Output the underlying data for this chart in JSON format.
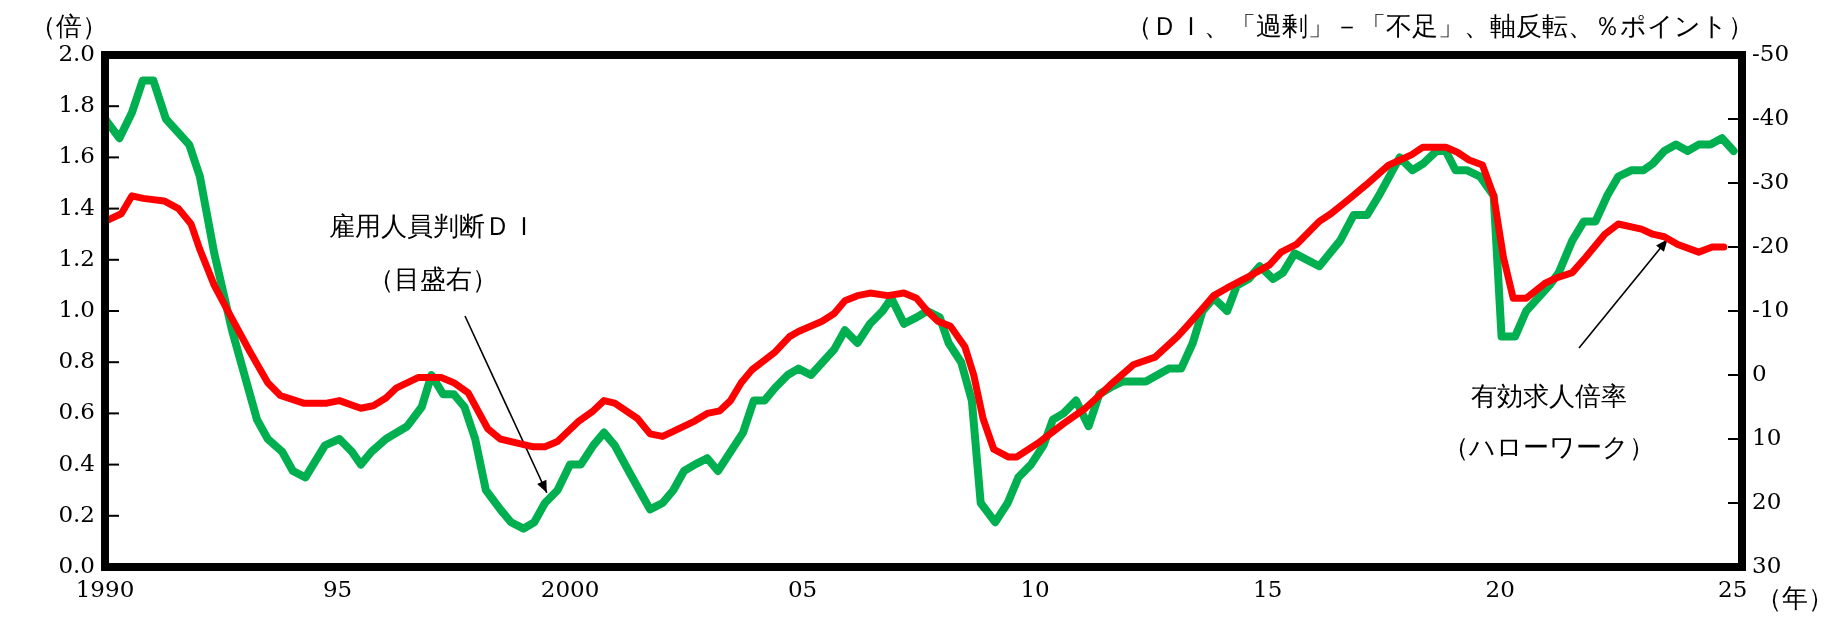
{
  "chart_data": {
    "type": "line",
    "ylabel": "（倍）",
    "y2label": "（ＤＩ、「過剰」－「不足」、軸反転、％ポイント）",
    "xlabel": "（年）",
    "xlim": [
      1990,
      2025.2
    ],
    "xticks": [
      {
        "value": 1990,
        "label": "1990"
      },
      {
        "value": 1995,
        "label": "95"
      },
      {
        "value": 2000,
        "label": "2000"
      },
      {
        "value": 2005,
        "label": "05"
      },
      {
        "value": 2010,
        "label": "10"
      },
      {
        "value": 2015,
        "label": "15"
      },
      {
        "value": 2020,
        "label": "20"
      },
      {
        "value": 2025,
        "label": "25"
      }
    ],
    "ylim": [
      0,
      2
    ],
    "yticks": [
      {
        "value": 0,
        "label": "0.0"
      },
      {
        "value": 0.2,
        "label": "0.2"
      },
      {
        "value": 0.4,
        "label": "0.4"
      },
      {
        "value": 0.6,
        "label": "0.6"
      },
      {
        "value": 0.8,
        "label": "0.8"
      },
      {
        "value": 1,
        "label": "1.0"
      },
      {
        "value": 1.2,
        "label": "1.2"
      },
      {
        "value": 1.4,
        "label": "1.4"
      },
      {
        "value": 1.6,
        "label": "1.6"
      },
      {
        "value": 1.8,
        "label": "1.8"
      },
      {
        "value": 2,
        "label": "2.0"
      }
    ],
    "y2lim": [
      30,
      -50
    ],
    "y2ticks": [
      30,
      20,
      10,
      0,
      -10,
      -20,
      -30,
      -40,
      -50
    ],
    "series": [
      {
        "color": "#ff0000",
        "axis": "y",
        "x": [
          1990.0,
          1990.35,
          1990.58,
          1990.82,
          1991.27,
          1991.58,
          1991.85,
          1992.04,
          1992.35,
          1992.73,
          1993.12,
          1993.5,
          1993.77,
          1994.27,
          1994.77,
          1995.04,
          1995.5,
          1995.77,
          1996.04,
          1996.27,
          1996.73,
          1997.23,
          1997.5,
          1997.81,
          1998.23,
          1998.5,
          1998.96,
          1999.19,
          1999.46,
          1999.73,
          2000.19,
          2000.5,
          2000.73,
          2000.96,
          2001.45,
          2001.72,
          2001.99,
          2002.22,
          2002.68,
          2002.95,
          2003.22,
          2003.45,
          2003.68,
          2003.91,
          2004.41,
          2004.72,
          2004.91,
          2005.42,
          2005.68,
          2005.91,
          2006.18,
          2006.45,
          2006.83,
          2007.18,
          2007.45,
          2007.68,
          2007.91,
          2008.18,
          2008.49,
          2008.68,
          2008.88,
          2009.11,
          2009.42,
          2009.61,
          2010.11,
          2010.61,
          2011.08,
          2011.38,
          2011.61,
          2012.11,
          2012.58,
          2013.06,
          2013.31,
          2013.6,
          2013.84,
          2014.13,
          2014.55,
          2015.04,
          2015.29,
          2015.62,
          2016.11,
          2016.36,
          2016.77,
          2017.1,
          2017.35,
          2017.6,
          2018.09,
          2018.34,
          2018.83,
          2019.08,
          2019.33,
          2019.62,
          2019.86,
          2020.07,
          2020.28,
          2020.56,
          2020.98,
          2021.22,
          2021.55,
          2021.84,
          2022.25,
          2022.54,
          2023.04,
          2023.28,
          2023.53,
          2023.82,
          2024.27,
          2024.56,
          2024.81
        ],
        "values": [
          1.35,
          1.38,
          1.45,
          1.44,
          1.43,
          1.4,
          1.34,
          1.24,
          1.1,
          0.97,
          0.84,
          0.72,
          0.67,
          0.64,
          0.64,
          0.65,
          0.62,
          0.63,
          0.66,
          0.7,
          0.74,
          0.74,
          0.72,
          0.68,
          0.54,
          0.5,
          0.48,
          0.47,
          0.47,
          0.49,
          0.57,
          0.61,
          0.65,
          0.64,
          0.58,
          0.52,
          0.51,
          0.53,
          0.57,
          0.6,
          0.61,
          0.65,
          0.72,
          0.77,
          0.84,
          0.9,
          0.92,
          0.96,
          0.99,
          1.04,
          1.06,
          1.07,
          1.06,
          1.07,
          1.05,
          1.0,
          0.96,
          0.94,
          0.86,
          0.75,
          0.58,
          0.46,
          0.43,
          0.43,
          0.49,
          0.56,
          0.62,
          0.67,
          0.71,
          0.79,
          0.82,
          0.9,
          0.95,
          1.01,
          1.06,
          1.09,
          1.13,
          1.18,
          1.23,
          1.26,
          1.35,
          1.38,
          1.44,
          1.49,
          1.53,
          1.57,
          1.61,
          1.64,
          1.64,
          1.62,
          1.59,
          1.57,
          1.45,
          1.21,
          1.05,
          1.05,
          1.11,
          1.13,
          1.15,
          1.21,
          1.3,
          1.34,
          1.32,
          1.3,
          1.29,
          1.26,
          1.23,
          1.25,
          1.25
        ]
      },
      {
        "color": "#00b050",
        "axis": "y2",
        "x": [
          1990.0,
          1990.31,
          1990.58,
          1990.81,
          1991.04,
          1991.31,
          1991.81,
          1992.04,
          1992.35,
          1992.73,
          1993.27,
          1993.5,
          1993.81,
          1994.04,
          1994.31,
          1994.73,
          1995.04,
          1995.31,
          1995.5,
          1995.73,
          1996.04,
          1996.5,
          1996.81,
          1997.02,
          1997.27,
          1997.5,
          1997.73,
          1997.96,
          1998.19,
          1998.5,
          1998.73,
          1999.0,
          1999.23,
          1999.46,
          1999.73,
          2000.0,
          2000.23,
          2000.5,
          2000.73,
          2000.96,
          2001.26,
          2001.49,
          2001.72,
          2001.99,
          2002.22,
          2002.45,
          2002.68,
          2002.95,
          2003.18,
          2003.72,
          2003.95,
          2004.18,
          2004.41,
          2004.68,
          2004.91,
          2005.18,
          2005.68,
          2005.91,
          2006.18,
          2006.45,
          2006.72,
          2006.91,
          2007.18,
          2007.45,
          2007.68,
          2007.95,
          2008.14,
          2008.41,
          2008.64,
          2008.83,
          2009.14,
          2009.41,
          2009.64,
          2009.91,
          2010.18,
          2010.38,
          2010.61,
          2010.88,
          2011.15,
          2011.38,
          2011.61,
          2011.88,
          2012.38,
          2012.88,
          2013.14,
          2013.39,
          2013.6,
          2013.84,
          2014.13,
          2014.34,
          2014.59,
          2014.83,
          2015.12,
          2015.33,
          2015.58,
          2016.11,
          2016.56,
          2016.85,
          2017.14,
          2017.39,
          2017.84,
          2018.11,
          2018.34,
          2018.63,
          2018.83,
          2019.04,
          2019.28,
          2019.57,
          2019.86,
          2020.03,
          2020.32,
          2020.56,
          2021.06,
          2021.26,
          2021.55,
          2021.8,
          2022.05,
          2022.3,
          2022.54,
          2022.83,
          2023.08,
          2023.28,
          2023.53,
          2023.78,
          2024.03,
          2024.27,
          2024.52,
          2024.77,
          2025.02
        ],
        "values": [
          -40,
          -37,
          -41,
          -46,
          -46,
          -40,
          -36,
          -31,
          -19,
          -7,
          7,
          10,
          12,
          15,
          16,
          11,
          10,
          12,
          14,
          12,
          10,
          8,
          5,
          0,
          3,
          3,
          5,
          10,
          18,
          21,
          23,
          24,
          23,
          20,
          18,
          14,
          14,
          11,
          9,
          11,
          15,
          18,
          21,
          20,
          18,
          15,
          14,
          13,
          15,
          9,
          4,
          4,
          2,
          0,
          -1,
          0,
          -4,
          -7,
          -5,
          -8,
          -10,
          -12,
          -8,
          -9,
          -10,
          -9,
          -5,
          -2,
          4,
          20,
          23,
          20,
          16,
          14,
          11,
          7,
          6,
          4,
          8,
          3,
          2,
          1,
          1,
          -1,
          -1,
          -5,
          -10,
          -12,
          -10,
          -14,
          -15,
          -17,
          -15,
          -16,
          -19,
          -17,
          -21,
          -25,
          -25,
          -28,
          -34,
          -32,
          -33,
          -35,
          -35,
          -32,
          -32,
          -31,
          -28,
          -6,
          -6,
          -10,
          -14,
          -16,
          -21,
          -24,
          -24,
          -28,
          -31,
          -32,
          -32,
          -33,
          -35,
          -36,
          -35,
          -36,
          -36,
          -37,
          -35
        ]
      }
    ],
    "annotations": [
      "雇用人員判断ＤＩ",
      {
        "text": "（目盛右）",
        "x": 1999.5,
        "y": 0.29
      },
      {
        "text": "有効求人倍率",
        "x": 2023.6,
        "y": 1.28
      },
      "（ハローワーク）"
    ]
  }
}
